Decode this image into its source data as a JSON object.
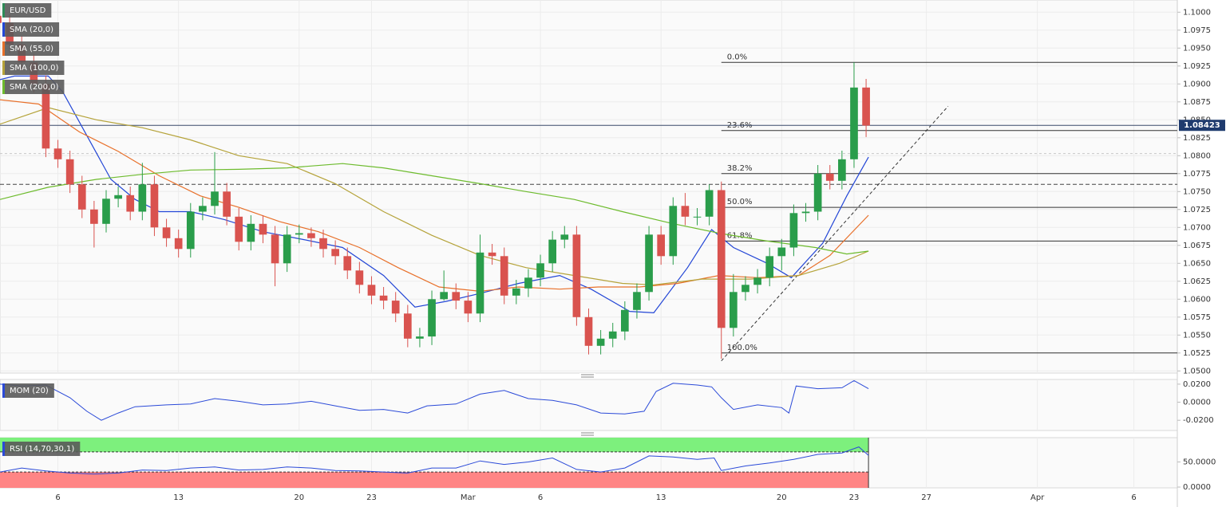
{
  "chart_data": [
    {
      "type": "candlestick",
      "title": "EUR/USD",
      "title_color": "#2e8b57",
      "x": [
        -2.5,
        -2,
        -1.5,
        -1,
        -0.5,
        0,
        0.5,
        1,
        1.5,
        2,
        2.5,
        3,
        3.5,
        4,
        4.5,
        5,
        5.5,
        6,
        6.5,
        7,
        7.5,
        8,
        8.5,
        9,
        9.5,
        10,
        10.5,
        11,
        11.5,
        12,
        12.5,
        13,
        13.5,
        14,
        14.5,
        15,
        15.5,
        16,
        16.5,
        17,
        17.5,
        18,
        18.5,
        19,
        19.5,
        20,
        20.5,
        21,
        21.5,
        22,
        22.5,
        23,
        23.5,
        24,
        24.5,
        25,
        25.5,
        26,
        26.5,
        27,
        27.5,
        28,
        28.5,
        29,
        29.5,
        30,
        30.5,
        31,
        31.5,
        32,
        32.5,
        33,
        33.5
      ],
      "open": [
        1.0995,
        1.0985,
        1.0955,
        1.093,
        1.09,
        1.081,
        1.0795,
        1.076,
        1.0725,
        1.0705,
        1.074,
        1.0745,
        1.0722,
        1.076,
        1.07,
        1.0685,
        1.067,
        1.0722,
        1.073,
        1.075,
        1.0715,
        1.068,
        1.0705,
        1.069,
        1.065,
        1.069,
        1.0692,
        1.0685,
        1.067,
        1.066,
        1.064,
        1.062,
        1.0605,
        1.0598,
        1.058,
        1.0545,
        1.0548,
        1.06,
        1.061,
        1.0598,
        1.058,
        1.0665,
        1.066,
        1.0605,
        1.0615,
        1.063,
        1.065,
        1.0683,
        1.069,
        1.0575,
        1.0535,
        1.0545,
        1.0555,
        1.0585,
        1.061,
        1.069,
        1.066,
        1.073,
        1.0715,
        1.0715,
        1.0752,
        1.056,
        1.061,
        1.062,
        1.063,
        1.066,
        1.0672,
        1.072,
        1.0722,
        1.0775,
        1.0765,
        1.0795,
        1.0895
      ],
      "high": [
        1.1007,
        1.0997,
        1.0967,
        1.0942,
        1.0912,
        1.0822,
        1.0807,
        1.0772,
        1.0737,
        1.0752,
        1.0757,
        1.0757,
        1.079,
        1.0772,
        1.0712,
        1.0697,
        1.0734,
        1.0742,
        1.0805,
        1.0762,
        1.0727,
        1.0717,
        1.0717,
        1.0702,
        1.0702,
        1.0704,
        1.07,
        1.0697,
        1.0682,
        1.0672,
        1.0652,
        1.0632,
        1.0617,
        1.061,
        1.0592,
        1.056,
        1.0612,
        1.064,
        1.0622,
        1.061,
        1.069,
        1.0677,
        1.0672,
        1.0627,
        1.0642,
        1.0662,
        1.0695,
        1.0702,
        1.0702,
        1.0587,
        1.0557,
        1.0567,
        1.0597,
        1.0622,
        1.0702,
        1.0702,
        1.0742,
        1.0748,
        1.0727,
        1.076,
        1.0764,
        1.0635,
        1.0632,
        1.0642,
        1.0672,
        1.0684,
        1.0732,
        1.0734,
        1.0787,
        1.0787,
        1.0807,
        1.093,
        1.0907
      ],
      "low": [
        1.0973,
        1.0943,
        1.0918,
        1.0888,
        1.0798,
        1.0783,
        1.0748,
        1.0713,
        1.0672,
        1.0693,
        1.0728,
        1.071,
        1.071,
        1.0688,
        1.0673,
        1.0658,
        1.0658,
        1.071,
        1.0718,
        1.0703,
        1.0668,
        1.0668,
        1.0678,
        1.0618,
        1.0638,
        1.0678,
        1.0673,
        1.0658,
        1.0648,
        1.0628,
        1.0608,
        1.0593,
        1.0586,
        1.0568,
        1.0533,
        1.0533,
        1.0536,
        1.0598,
        1.0586,
        1.0568,
        1.0568,
        1.0648,
        1.0593,
        1.0593,
        1.0603,
        1.0618,
        1.0638,
        1.0671,
        1.0563,
        1.0523,
        1.0523,
        1.0533,
        1.0543,
        1.0573,
        1.0598,
        1.0648,
        1.0648,
        1.0703,
        1.0703,
        1.0703,
        1.0517,
        1.0548,
        1.0598,
        1.0608,
        1.0618,
        1.064,
        1.066,
        1.0708,
        1.071,
        1.0753,
        1.0753,
        1.0783,
        1.0826
      ],
      "close": [
        1.0985,
        1.0955,
        1.093,
        1.09,
        1.081,
        1.0795,
        1.076,
        1.0725,
        1.0705,
        1.074,
        1.0745,
        1.0722,
        1.076,
        1.07,
        1.0685,
        1.067,
        1.0722,
        1.073,
        1.075,
        1.0715,
        1.068,
        1.0705,
        1.069,
        1.065,
        1.069,
        1.0692,
        1.0685,
        1.067,
        1.066,
        1.064,
        1.062,
        1.0605,
        1.0598,
        1.058,
        1.0545,
        1.0548,
        1.06,
        1.061,
        1.0598,
        1.058,
        1.0665,
        1.066,
        1.0605,
        1.0615,
        1.063,
        1.065,
        1.0683,
        1.069,
        1.0575,
        1.0535,
        1.0545,
        1.0555,
        1.0585,
        1.061,
        1.069,
        1.066,
        1.073,
        1.0715,
        1.0715,
        1.0752,
        1.056,
        1.061,
        1.062,
        1.063,
        1.066,
        1.0672,
        1.072,
        1.0722,
        1.0775,
        1.0765,
        1.0795,
        1.0895,
        1.0842
      ],
      "up_color": "#2a9d4b",
      "down_color": "#d9534f",
      "series": [
        {
          "name": "SMA (20,0)",
          "color": "#2346d6",
          "x": [
            -2.4,
            -1.8,
            -0.4,
            0.2,
            1.2,
            2.2,
            3.2,
            4.2,
            5.5,
            6.9,
            8.5,
            10.2,
            11.8,
            13.5,
            14.8,
            16.1,
            17.5,
            19.1,
            20.8,
            22.1,
            23.7,
            24.7,
            26.1,
            27.1,
            28.0,
            29.4,
            30.4,
            31.7,
            32.7,
            33.6
          ],
          "values": [
            1.0906,
            1.0911,
            1.0911,
            1.0889,
            1.0828,
            1.0767,
            1.0739,
            1.0722,
            1.0722,
            1.0711,
            1.0694,
            1.0683,
            1.0672,
            1.0633,
            1.0589,
            1.0597,
            1.0608,
            1.0622,
            1.0633,
            1.0614,
            1.0583,
            1.0581,
            1.0644,
            1.0697,
            1.0672,
            1.065,
            1.063,
            1.0678,
            1.0744,
            1.0798
          ]
        },
        {
          "name": "SMA (55,0)",
          "color": "#e8702a",
          "x": [
            -2.4,
            -0.8,
            0.9,
            2.5,
            4.2,
            5.9,
            7.5,
            9.2,
            10.8,
            12.5,
            14.1,
            15.8,
            17.5,
            19.1,
            20.8,
            22.4,
            24.1,
            25.7,
            27.4,
            29.0,
            30.7,
            32.0,
            33.6
          ],
          "values": [
            1.0878,
            1.0872,
            1.0833,
            1.0806,
            1.0772,
            1.0744,
            1.0728,
            1.0708,
            1.0694,
            1.0672,
            1.0644,
            1.0617,
            1.0611,
            1.0617,
            1.0614,
            1.0617,
            1.0617,
            1.0622,
            1.0633,
            1.063,
            1.0633,
            1.0661,
            1.0717
          ]
        },
        {
          "name": "SMA (100,0)",
          "color": "#b5a33a",
          "x": [
            -2.4,
            -0.4,
            1.6,
            3.5,
            5.5,
            7.5,
            9.5,
            11.5,
            13.5,
            15.5,
            17.5,
            19.4,
            21.4,
            23.4,
            24.7,
            26.7,
            28.7,
            30.7,
            32.4,
            33.6
          ],
          "values": [
            1.0844,
            1.0867,
            1.085,
            1.0839,
            1.0822,
            1.08,
            1.0789,
            1.0761,
            1.0722,
            1.0689,
            1.0661,
            1.0644,
            1.0633,
            1.0622,
            1.062,
            1.0628,
            1.0628,
            1.0633,
            1.065,
            1.0667
          ]
        },
        {
          "name": "SMA (200,0)",
          "color": "#6dbb2d",
          "x": [
            -2.4,
            -0.4,
            1.6,
            3.5,
            5.5,
            7.5,
            9.5,
            11.8,
            13.5,
            15.5,
            17.5,
            19.4,
            21.4,
            23.4,
            25.4,
            27.4,
            29.4,
            31.4,
            32.7,
            33.6
          ],
          "values": [
            1.0739,
            1.0756,
            1.0767,
            1.0774,
            1.078,
            1.0781,
            1.0783,
            1.0789,
            1.0783,
            1.0772,
            1.0761,
            1.075,
            1.0739,
            1.0722,
            1.0706,
            1.0692,
            1.0681,
            1.0672,
            1.0663,
            1.0667
          ]
        }
      ],
      "last_price": 1.08423,
      "last_color": "#1f3b6e",
      "hlines": [
        {
          "value": 1.076,
          "style": "dashed"
        },
        {
          "value": 1.0803,
          "style": "dotted"
        }
      ],
      "fib_levels": [
        {
          "name": "0.0%",
          "value": 1.093
        },
        {
          "name": "23.6%",
          "value": 1.0835
        },
        {
          "name": "38.2%",
          "value": 1.0775
        },
        {
          "name": "50.0%",
          "value": 1.0728
        },
        {
          "name": "61.8%",
          "value": 1.0681
        },
        {
          "name": "100.0%",
          "value": 1.0525
        }
      ],
      "trendline": {
        "x": [
          27.5,
          36.9
        ],
        "values": [
          1.0514,
          1.0869
        ]
      },
      "xlim": [
        -2.4,
        46.4
      ],
      "ylim": [
        1.0497,
        1.1017
      ],
      "xticks": [
        {
          "value": 0,
          "label": "6"
        },
        {
          "value": 5,
          "label": "13"
        },
        {
          "value": 10,
          "label": "20"
        },
        {
          "value": 13,
          "label": "23"
        },
        {
          "value": 17,
          "label": "Mar"
        },
        {
          "value": 20,
          "label": "6"
        },
        {
          "value": 25,
          "label": "13"
        },
        {
          "value": 30,
          "label": "20"
        },
        {
          "value": 33,
          "label": "23"
        },
        {
          "value": 36,
          "label": "27"
        },
        {
          "value": 40.6,
          "label": "Apr"
        },
        {
          "value": 44.6,
          "label": "6"
        }
      ],
      "yticks": [
        {
          "value": 1.1,
          "label": "1.1000"
        },
        {
          "value": 1.0975,
          "label": "1.0975"
        },
        {
          "value": 1.095,
          "label": "1.0950"
        },
        {
          "value": 1.0925,
          "label": "1.0925"
        },
        {
          "value": 1.09,
          "label": "1.0900"
        },
        {
          "value": 1.0875,
          "label": "1.0875"
        },
        {
          "value": 1.085,
          "label": "1.0850"
        },
        {
          "value": 1.0825,
          "label": "1.0825"
        },
        {
          "value": 1.08,
          "label": "1.0800"
        },
        {
          "value": 1.0775,
          "label": "1.0775"
        },
        {
          "value": 1.075,
          "label": "1.0750"
        },
        {
          "value": 1.0725,
          "label": "1.0725"
        },
        {
          "value": 1.07,
          "label": "1.0700"
        },
        {
          "value": 1.0675,
          "label": "1.0675"
        },
        {
          "value": 1.065,
          "label": "1.0650"
        },
        {
          "value": 1.0625,
          "label": "1.0625"
        },
        {
          "value": 1.06,
          "label": "1.0600"
        },
        {
          "value": 1.0575,
          "label": "1.0575"
        },
        {
          "value": 1.055,
          "label": "1.0550"
        },
        {
          "value": 1.0525,
          "label": "1.0525"
        },
        {
          "value": 1.05,
          "label": "1.0500"
        }
      ],
      "grid": true
    },
    {
      "type": "line",
      "title": "MOM (20)",
      "color": "#2b4ad8",
      "x": [
        -2.4,
        -1.5,
        -0.5,
        0.5,
        1.2,
        1.8,
        2.5,
        3.2,
        4.5,
        5.5,
        6.5,
        7.5,
        8.5,
        9.5,
        10.5,
        11.5,
        12.5,
        13.5,
        14.5,
        15.3,
        16.5,
        17.5,
        18.5,
        19.5,
        20.5,
        21.5,
        22.5,
        23.5,
        24.3,
        24.8,
        25.5,
        26.5,
        27.1,
        27.5,
        28,
        29,
        30,
        30.3,
        30.6,
        31.5,
        32.5,
        33,
        33.6
      ],
      "values": [
        0.02,
        0.018,
        0.019,
        0.005,
        -0.01,
        -0.02,
        -0.012,
        -0.005,
        -0.003,
        -0.002,
        0.004,
        0.001,
        -0.003,
        -0.002,
        0.001,
        -0.004,
        -0.009,
        -0.008,
        -0.012,
        -0.004,
        -0.002,
        0.009,
        0.013,
        0.004,
        0.002,
        -0.003,
        -0.012,
        -0.013,
        -0.01,
        0.012,
        0.021,
        0.019,
        0.017,
        0.005,
        -0.008,
        -0.003,
        -0.006,
        -0.012,
        0.018,
        0.015,
        0.016,
        0.024,
        0.015
      ],
      "ylim": [
        -0.0313,
        0.0252
      ],
      "yticks": [
        {
          "value": 0.02,
          "label": "0.0200"
        },
        {
          "value": 0,
          "label": "0.0000"
        },
        {
          "value": -0.02,
          "label": "-0.0200"
        }
      ]
    },
    {
      "type": "line",
      "title": "RSI (14,70,30,1)",
      "color": "#2b4ad8",
      "x": [
        -2.4,
        -1.5,
        -0.5,
        0.5,
        1.5,
        2.5,
        3.5,
        4.5,
        5.5,
        6.5,
        7.5,
        8.5,
        9.5,
        10.5,
        11.5,
        12.5,
        13.5,
        14.5,
        15.5,
        16.5,
        17.5,
        18.5,
        19.5,
        20.5,
        21.5,
        22.5,
        23.5,
        24.5,
        25.5,
        26.5,
        27.2,
        27.5,
        28.5,
        29.5,
        30.5,
        31.5,
        32.5,
        33.2,
        33.6
      ],
      "values": [
        30,
        38,
        32,
        28,
        26,
        28,
        34,
        33,
        38,
        40,
        34,
        35,
        40,
        38,
        33,
        32,
        30,
        28,
        38,
        38,
        52,
        45,
        50,
        58,
        35,
        30,
        38,
        62,
        60,
        55,
        58,
        33,
        42,
        48,
        55,
        65,
        68,
        80,
        63
      ],
      "overbought": 70,
      "oversold": 30,
      "overbought_color": "#7df07d",
      "oversold_color": "#ff8585",
      "ylim": [
        -1.6,
        98.4
      ],
      "yticks": [
        {
          "value": 50,
          "label": "50.0000"
        },
        {
          "value": 0,
          "label": "0.0000"
        }
      ]
    }
  ]
}
